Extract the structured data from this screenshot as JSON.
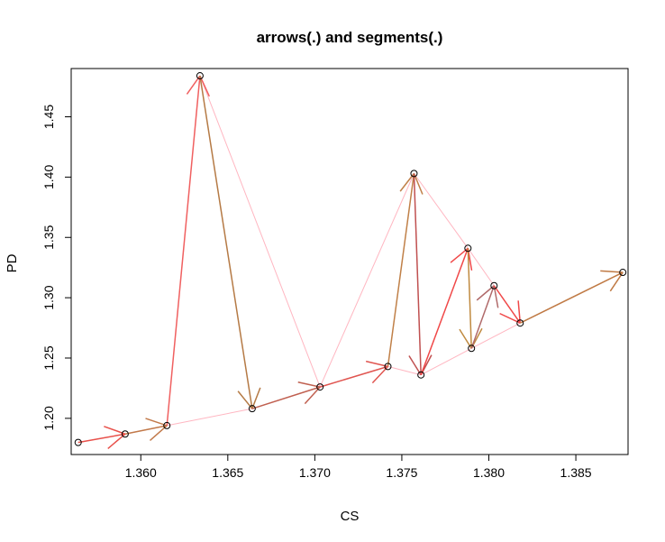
{
  "chart_data": {
    "type": "scatter",
    "title": "arrows(.) and segments(.)",
    "xlabel": "CS",
    "ylabel": "PD",
    "xlim": [
      1.356,
      1.388
    ],
    "ylim": [
      1.17,
      1.49
    ],
    "x_ticks": [
      1.36,
      1.365,
      1.37,
      1.375,
      1.38,
      1.385
    ],
    "x_tick_labels": [
      "1.360",
      "1.365",
      "1.370",
      "1.375",
      "1.380",
      "1.385"
    ],
    "y_ticks": [
      1.2,
      1.25,
      1.3,
      1.35,
      1.4,
      1.45
    ],
    "y_tick_labels": [
      "1.20",
      "1.25",
      "1.30",
      "1.35",
      "1.40",
      "1.45"
    ],
    "grid": false,
    "points": [
      {
        "x": 1.3564,
        "y": 1.18
      },
      {
        "x": 1.3591,
        "y": 1.187
      },
      {
        "x": 1.3615,
        "y": 1.194
      },
      {
        "x": 1.3634,
        "y": 1.484
      },
      {
        "x": 1.3664,
        "y": 1.208
      },
      {
        "x": 1.3703,
        "y": 1.226
      },
      {
        "x": 1.3742,
        "y": 1.243
      },
      {
        "x": 1.3757,
        "y": 1.403
      },
      {
        "x": 1.3761,
        "y": 1.236
      },
      {
        "x": 1.3788,
        "y": 1.341
      },
      {
        "x": 1.379,
        "y": 1.258
      },
      {
        "x": 1.3803,
        "y": 1.31
      },
      {
        "x": 1.3818,
        "y": 1.279
      },
      {
        "x": 1.3877,
        "y": 1.321
      }
    ],
    "segments": {
      "color": "#ffb6c1",
      "pairs": [
        [
          0,
          1
        ],
        [
          1,
          2
        ],
        [
          2,
          4
        ],
        [
          4,
          5
        ],
        [
          5,
          6
        ],
        [
          6,
          8
        ],
        [
          8,
          10
        ],
        [
          10,
          12
        ],
        [
          3,
          5
        ],
        [
          5,
          7
        ],
        [
          7,
          9
        ],
        [
          9,
          11
        ],
        [
          11,
          12
        ]
      ]
    },
    "arrows": [
      {
        "from": 0,
        "to": 1,
        "color": "#e8504a"
      },
      {
        "from": 1,
        "to": 2,
        "color": "#c27a4b"
      },
      {
        "from": 2,
        "to": 3,
        "color": "#f06060"
      },
      {
        "from": 3,
        "to": 4,
        "color": "#b57a45"
      },
      {
        "from": 4,
        "to": 5,
        "color": "#c06050"
      },
      {
        "from": 5,
        "to": 6,
        "color": "#e05550"
      },
      {
        "from": 6,
        "to": 7,
        "color": "#c08048"
      },
      {
        "from": 7,
        "to": 8,
        "color": "#c05050"
      },
      {
        "from": 8,
        "to": 9,
        "color": "#f04848"
      },
      {
        "from": 9,
        "to": 10,
        "color": "#c08a40"
      },
      {
        "from": 10,
        "to": 11,
        "color": "#b06a6a"
      },
      {
        "from": 11,
        "to": 12,
        "color": "#f04848"
      },
      {
        "from": 12,
        "to": 13,
        "color": "#c07a45"
      }
    ]
  }
}
